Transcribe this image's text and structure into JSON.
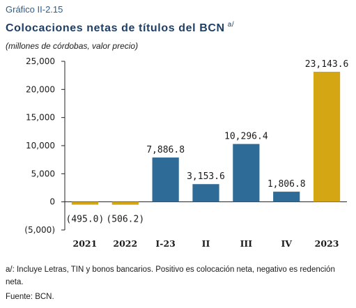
{
  "figure": {
    "number": "Gráfico II-2.15",
    "title": "Colocaciones netas de títulos del BCN",
    "title_note": "a/",
    "subtitle": "(millones de córdobas, valor precio)"
  },
  "chart_data": {
    "type": "bar",
    "title": "Colocaciones netas de títulos del BCN",
    "categories": [
      "2021",
      "2022",
      "I-23",
      "II",
      "III",
      "IV",
      "2023"
    ],
    "values": [
      -495.0,
      -506.2,
      7886.8,
      3153.6,
      10296.4,
      1806.8,
      23143.6
    ],
    "data_labels": [
      "(495.0)",
      "(506.2)",
      "7,886.8",
      "3,153.6",
      "10,296.4",
      "1,806.8",
      "23,143.6"
    ],
    "bar_colors": [
      "#d4a614",
      "#d4a614",
      "#2e6b96",
      "#2e6b96",
      "#2e6b96",
      "#2e6b96",
      "#d4a614"
    ],
    "ylim": [
      -5000,
      25000
    ],
    "yticks": [
      25000,
      20000,
      15000,
      10000,
      5000,
      0,
      -5000
    ],
    "ytick_labels": [
      "25,000",
      "20,000",
      "15,000",
      "10,000",
      "5,000",
      "0",
      "(5,000)"
    ],
    "grid": false,
    "xlabel": "",
    "ylabel": ""
  },
  "notes": {
    "footnote": "a/: Incluye Letras, TIN y bonos bancarios. Positivo es colocación neta, negativo es redención neta.",
    "source": "Fuente: BCN."
  },
  "colors": {
    "annual": "#d4a614",
    "quarterly": "#2e6b96",
    "title": "#1f3f66"
  }
}
